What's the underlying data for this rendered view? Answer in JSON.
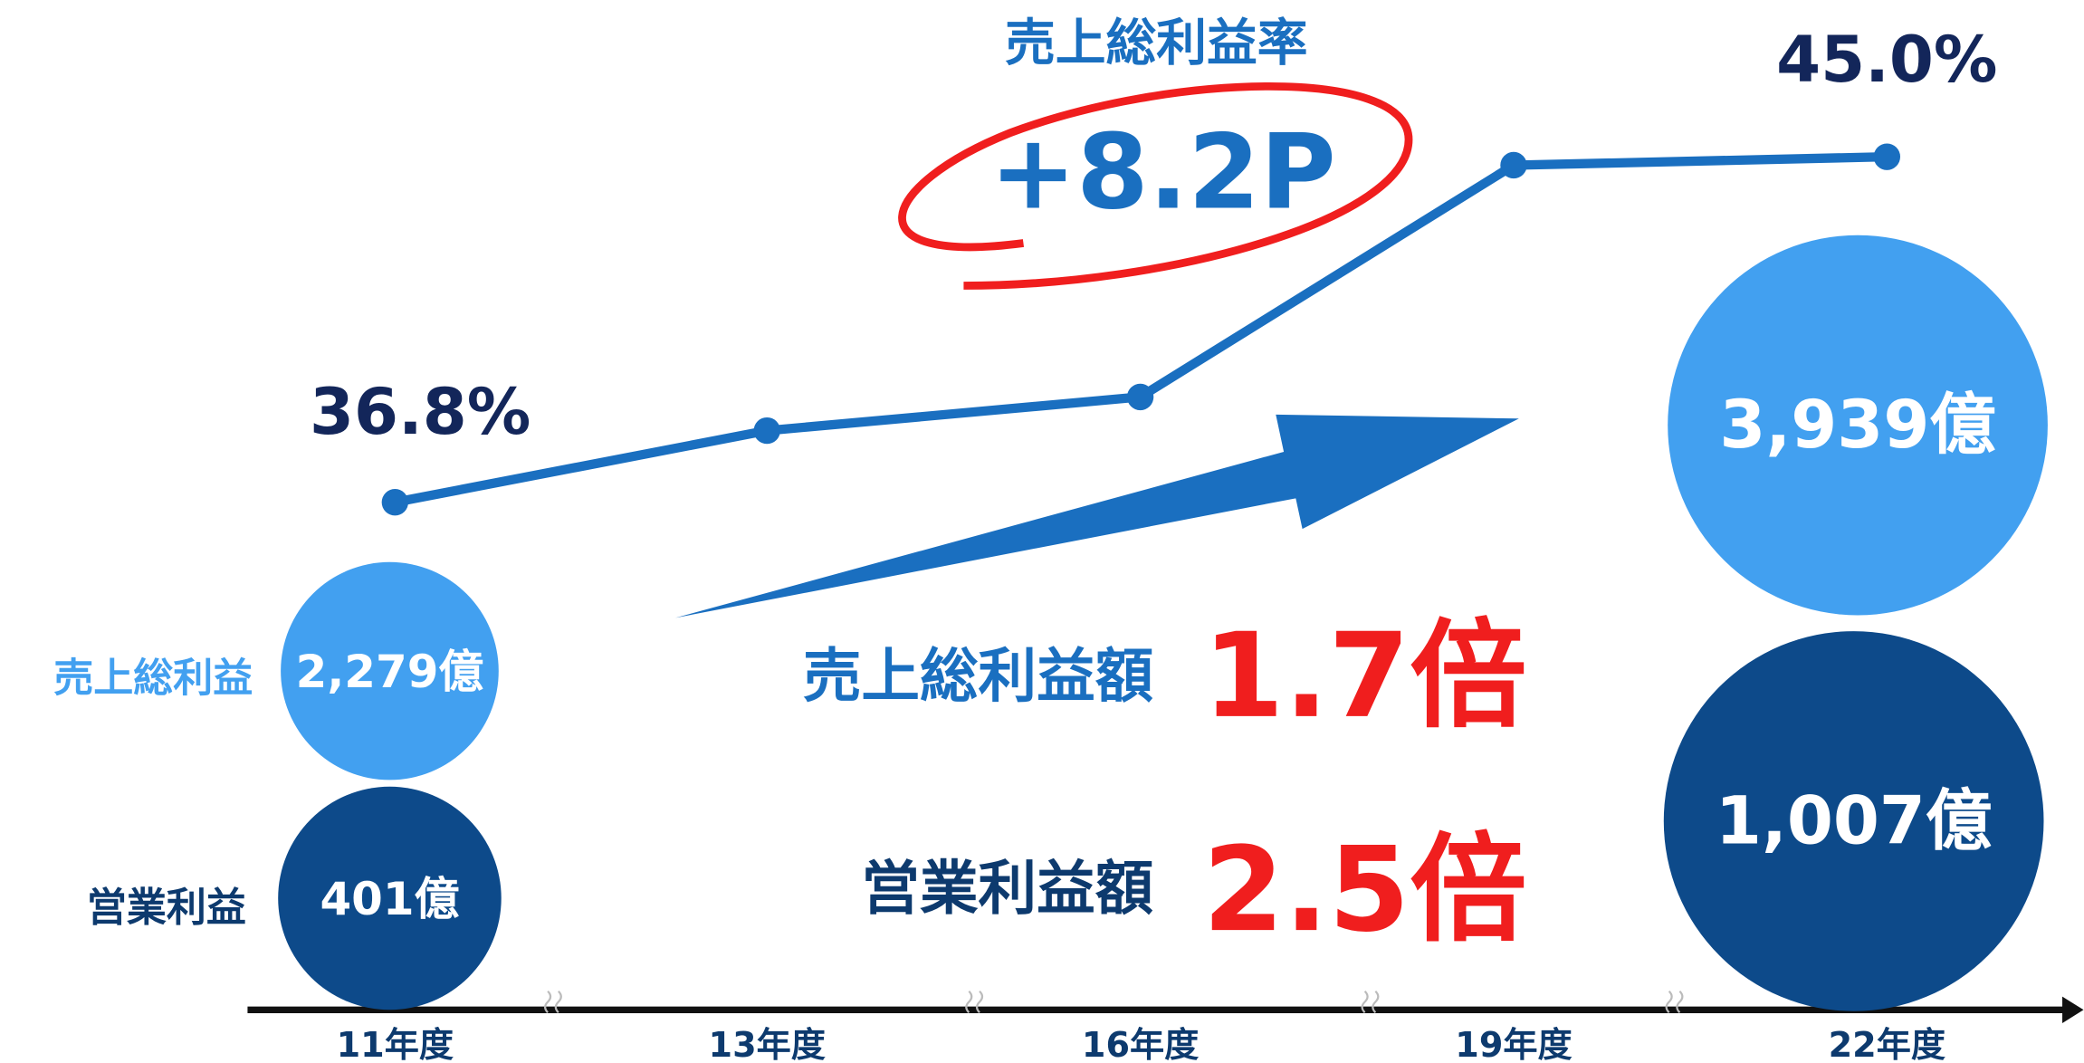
{
  "chart_data": {
    "type": "line",
    "categories": [
      "11年度",
      "13年度",
      "16年度",
      "19年度",
      "22年度"
    ],
    "series": [
      {
        "name": "売上総利益率",
        "color": "#1a6fc0",
        "values": [
          36.8,
          38.5,
          39.3,
          44.8,
          45.0
        ],
        "value_labels": [
          "36.8%",
          null,
          null,
          null,
          "45.0%"
        ]
      }
    ],
    "bubble_series": [
      {
        "name": "売上総利益",
        "color": "#42a0f0",
        "values": [
          2279,
          null,
          null,
          null,
          3939
        ],
        "value_labels": [
          "2,279億",
          null,
          null,
          null,
          "3,939億"
        ]
      },
      {
        "name": "営業利益",
        "color": "#0d4a8a",
        "values": [
          401,
          null,
          null,
          null,
          1007
        ],
        "value_labels": [
          "401億",
          null,
          null,
          null,
          "1,007億"
        ]
      }
    ],
    "annotations": [
      {
        "text": "+8.2P"
      },
      {
        "text": "売上総利益額",
        "label": "1.7倍"
      },
      {
        "text": "営業利益額",
        "label": "2.5倍"
      }
    ]
  }
}
